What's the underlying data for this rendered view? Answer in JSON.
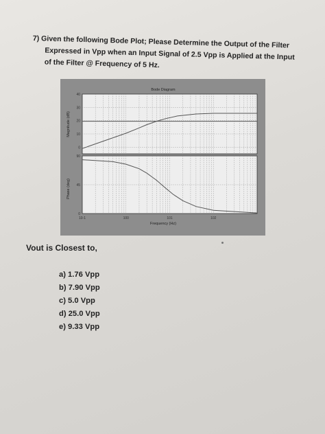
{
  "question": {
    "lines": [
      "7) Given the following Bode Plot; Please Determine the Output of the Filter",
      "Expressed in Vpp when an Input Signal of 2.5 Vpp is Applied at the Input",
      "of the Filter @ Frequency of 5 Hz."
    ]
  },
  "prompt": "Vout is Closest to,",
  "answers": [
    "a) 1.76 Vpp",
    "b) 7.90 Vpp",
    "c) 5.0 Vpp",
    "d) 25.0 Vpp",
    "e) 9.33 Vpp"
  ],
  "colors": {
    "plot_bg": "#eeeeee",
    "frame_bg": "#8d8d8d",
    "curve": "#555555",
    "grid": "#9a9a9a"
  },
  "chart_data": {
    "type": "line",
    "title": "Bode Diagram",
    "xlabel": "Frequency (Hz)",
    "xscale": "log",
    "xlim": [
      0.1,
      1000
    ],
    "x_ticks": [
      "10^-1",
      "10^0",
      "10^1",
      "10^2"
    ],
    "grid": true,
    "magnitude": {
      "ylabel": "Magnitude (dB)",
      "ylim": [
        -5,
        40
      ],
      "y_ticks": [
        "0",
        "10",
        "20",
        "30",
        "40"
      ],
      "series": [
        {
          "x": [
            0.1,
            0.3,
            1,
            2,
            3,
            5,
            8,
            15,
            40,
            100,
            1000
          ],
          "y": [
            -1,
            4.5,
            10.5,
            14.5,
            17,
            19.5,
            21.5,
            23.5,
            25,
            25.5,
            25.5
          ]
        },
        {
          "x": [
            0.1,
            1,
            10,
            100,
            1000
          ],
          "y": [
            19.5,
            19.5,
            19.5,
            19.5,
            19.5
          ]
        }
      ]
    },
    "phase": {
      "ylabel": "Phase (deg)",
      "ylim": [
        0,
        90
      ],
      "y_ticks": [
        "0",
        "45",
        "90"
      ],
      "series": [
        {
          "x": [
            0.1,
            0.5,
            1,
            2,
            3,
            5,
            8,
            12,
            20,
            40,
            100,
            1000
          ],
          "y": [
            84,
            81,
            77,
            70,
            63,
            52,
            40,
            30,
            20,
            11,
            5,
            1
          ]
        }
      ]
    }
  }
}
